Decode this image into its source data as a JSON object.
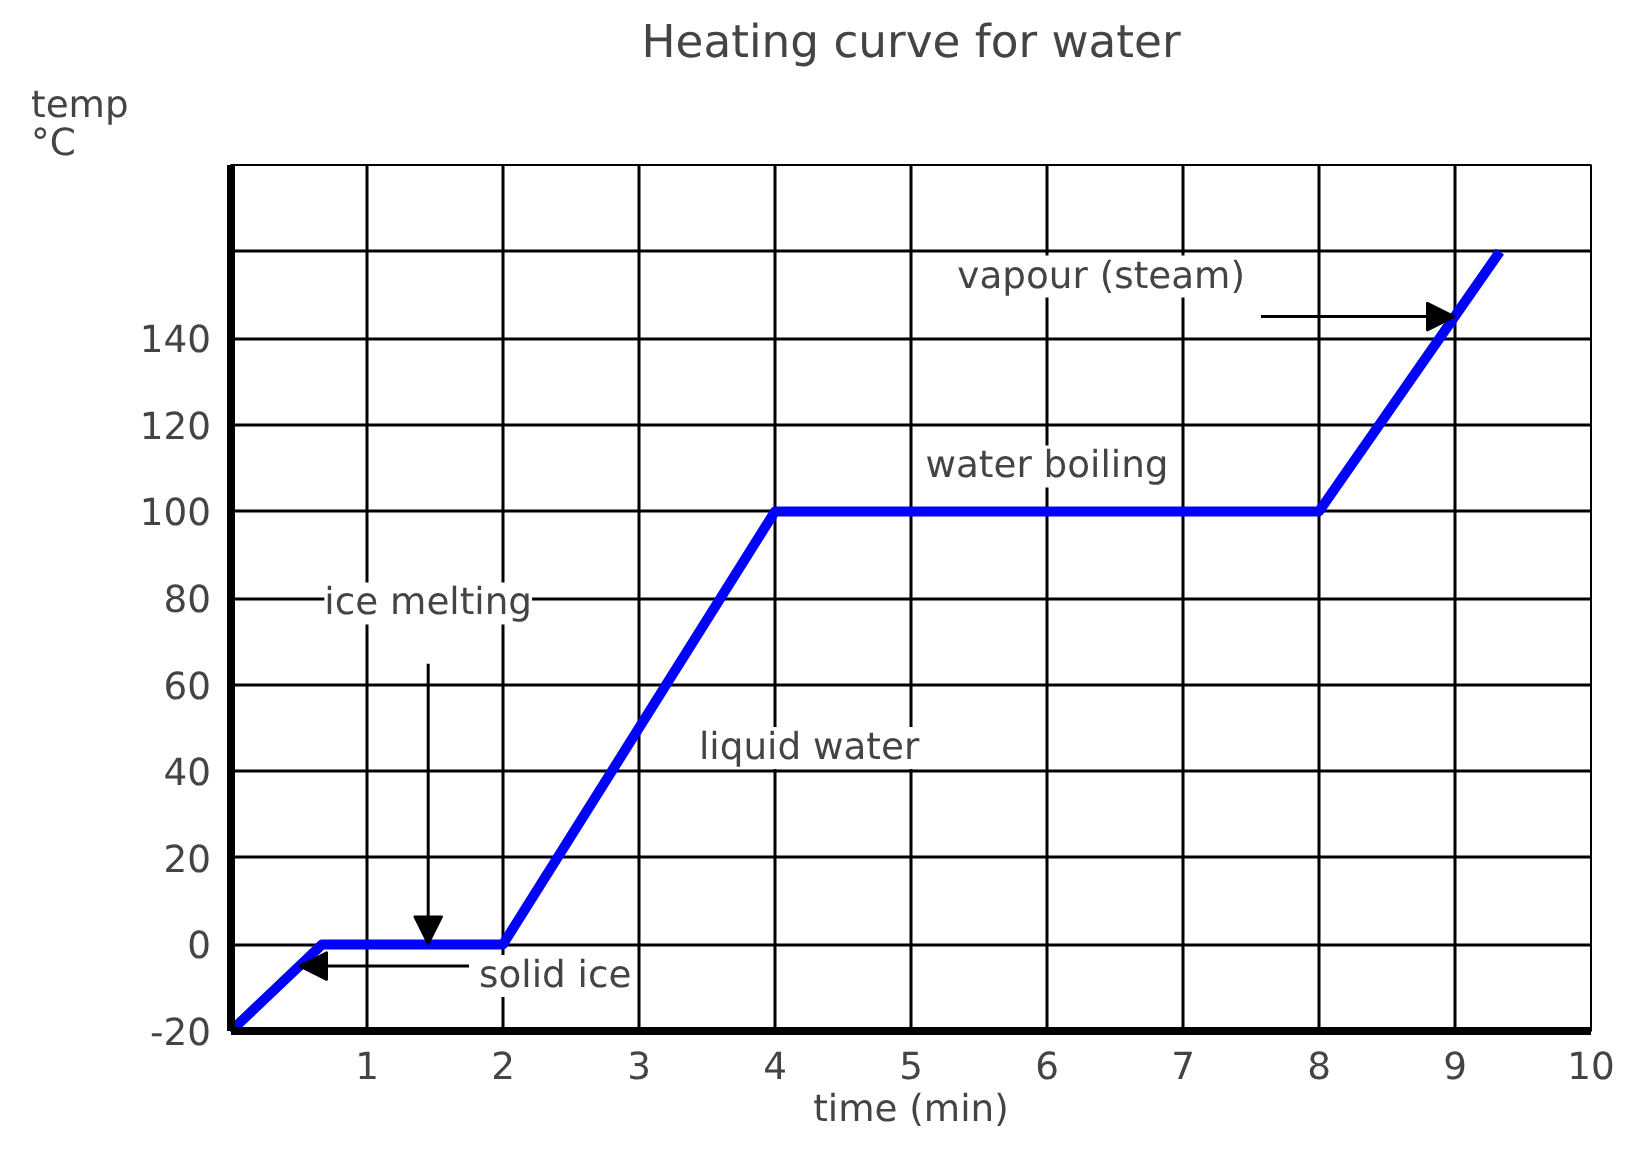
{
  "chart_data": {
    "type": "line",
    "title": "Heating curve for water",
    "xlabel": "time (min)",
    "ylabel": "temp\n°C",
    "x": [
      0,
      0.67,
      2,
      4,
      8,
      9.33
    ],
    "series": [
      {
        "color": "#0000ff",
        "values": [
          -20,
          0,
          0,
          100,
          100,
          160
        ]
      }
    ],
    "xlim": [
      0,
      10
    ],
    "ylim": [
      -20,
      180
    ],
    "xticks": [
      1,
      2,
      3,
      4,
      5,
      6,
      7,
      8,
      9,
      10
    ],
    "yticks": [
      -20,
      0,
      20,
      40,
      60,
      80,
      100,
      120,
      140,
      {
        "value": 160,
        "label": null
      },
      {
        "value": 180,
        "label": null
      }
    ],
    "grid": true,
    "marker": "none",
    "line_style": "solid",
    "annotations": [
      {
        "text": "ice melting",
        "x": 1.45,
        "y": 0
      },
      {
        "text": "solid ice",
        "x": 0.5,
        "y": -5
      },
      {
        "text": "liquid water",
        "x": 3,
        "y": 50
      },
      {
        "text": "water boiling",
        "x": 6,
        "y": 100
      },
      {
        "text": "vapour (steam)",
        "x": 9.0,
        "y": 145
      }
    ]
  }
}
